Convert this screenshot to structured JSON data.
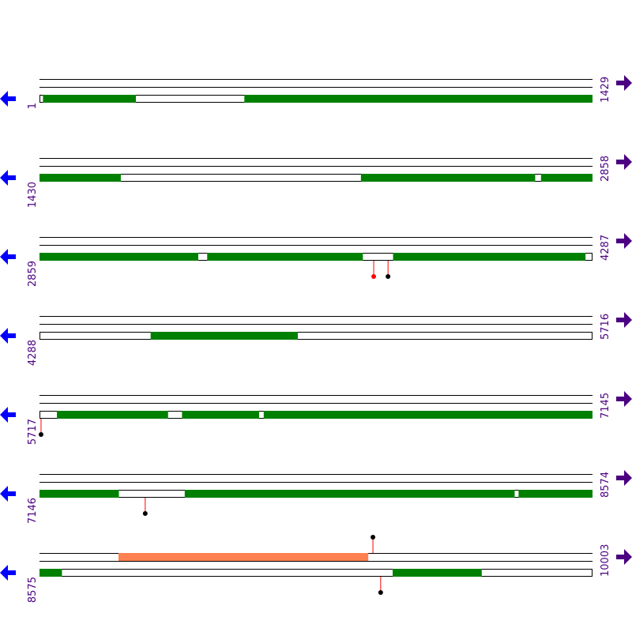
{
  "rows": [
    {
      "start_label": "1",
      "end_label": "1429",
      "start": 1,
      "end": 1429,
      "features": [
        {
          "track": 2,
          "from": 10,
          "to": 250,
          "color": "#008000"
        },
        {
          "track": 2,
          "from": 530,
          "to": 1429,
          "color": "#008000"
        }
      ],
      "markers": []
    },
    {
      "start_label": "1430",
      "end_label": "2858",
      "start": 1430,
      "end": 2858,
      "features": [
        {
          "track": 2,
          "from": 1430,
          "to": 1640,
          "color": "#008000"
        },
        {
          "track": 2,
          "from": 2260,
          "to": 2710,
          "color": "#008000"
        },
        {
          "track": 2,
          "from": 2725,
          "to": 2858,
          "color": "#008000"
        }
      ],
      "markers": []
    },
    {
      "start_label": "2859",
      "end_label": "4287",
      "start": 2859,
      "end": 4287,
      "features": [
        {
          "track": 2,
          "from": 2859,
          "to": 3269,
          "color": "#008000"
        },
        {
          "track": 2,
          "from": 3292,
          "to": 3694,
          "color": "#008000"
        },
        {
          "track": 2,
          "from": 3772,
          "to": 4269,
          "color": "#008000"
        }
      ],
      "markers": [
        {
          "pos": 3722,
          "dir": "down",
          "color": "#ff0000"
        },
        {
          "pos": 3759,
          "dir": "down",
          "color": "#000000"
        }
      ]
    },
    {
      "start_label": "4288",
      "end_label": "5716",
      "start": 4288,
      "end": 5716,
      "features": [
        {
          "track": 2,
          "from": 4575,
          "to": 4955,
          "color": "#008000"
        }
      ],
      "markers": []
    },
    {
      "start_label": "5717",
      "end_label": "7145",
      "start": 5717,
      "end": 7145,
      "features": [
        {
          "track": 2,
          "from": 5762,
          "to": 6049,
          "color": "#008000"
        },
        {
          "track": 2,
          "from": 6085,
          "to": 6284,
          "color": "#008000"
        },
        {
          "track": 2,
          "from": 6296,
          "to": 7145,
          "color": "#008000"
        }
      ],
      "markers": [
        {
          "pos": 5721,
          "dir": "down",
          "color": "#000000"
        }
      ]
    },
    {
      "start_label": "7146",
      "end_label": "8574",
      "start": 7146,
      "end": 8574,
      "features": [
        {
          "track": 2,
          "from": 7146,
          "to": 7351,
          "color": "#008000"
        },
        {
          "track": 2,
          "from": 7521,
          "to": 8373,
          "color": "#008000"
        },
        {
          "track": 2,
          "from": 8383,
          "to": 8574,
          "color": "#008000"
        }
      ],
      "markers": [
        {
          "pos": 7419,
          "dir": "down",
          "color": "#000000"
        }
      ]
    },
    {
      "start_label": "8575",
      "end_label": "10003",
      "start": 8575,
      "end": 10003,
      "features": [
        {
          "track": 0,
          "from": 8779,
          "to": 9424,
          "color": "#ff8050"
        },
        {
          "track": 2,
          "from": 8575,
          "to": 8633,
          "color": "#008000"
        },
        {
          "track": 2,
          "from": 9487,
          "to": 9717,
          "color": "#008000"
        }
      ],
      "markers": [
        {
          "pos": 9436,
          "dir": "up",
          "color": "#000000"
        },
        {
          "pos": 9456,
          "dir": "down",
          "color": "#000000"
        }
      ]
    }
  ],
  "colors": {
    "left_arrow": "#0000ff",
    "right_arrow": "#4b0082",
    "label": "#4b0082",
    "stem": "#ff0000"
  },
  "icons": {
    "left": "left-arrow-icon",
    "right": "right-arrow-icon"
  }
}
